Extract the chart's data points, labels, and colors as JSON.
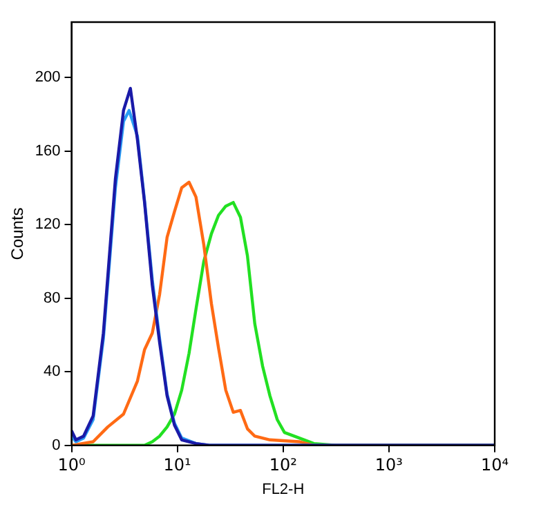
{
  "chart_data": {
    "type": "line",
    "xlabel": "FL2-H",
    "ylabel": "Counts",
    "log": "x",
    "grid": false,
    "legend": false,
    "marker": "none",
    "line_style": "solid",
    "xlim": [
      1,
      10000
    ],
    "xticks": [
      {
        "value": 1,
        "label": "10⁰"
      },
      {
        "value": 10,
        "label": "10¹"
      },
      {
        "value": 100,
        "label": "10²"
      },
      {
        "value": 1000,
        "label": "10³"
      },
      {
        "value": 10000,
        "label": "10⁴"
      }
    ],
    "ylim": [
      0,
      230
    ],
    "yticks": [
      0,
      40,
      80,
      120,
      160,
      200
    ],
    "series": [
      {
        "color": "#1a1aa8",
        "x": [
          1,
          1.1,
          1.3,
          1.6,
          2.0,
          2.6,
          3.1,
          3.6,
          4.2,
          4.9,
          5.8,
          6.8,
          8.0,
          9.4,
          11,
          15,
          20,
          100,
          10000
        ],
        "values": [
          8,
          3,
          5,
          16,
          61,
          145,
          182,
          194,
          166,
          132,
          87,
          56,
          27,
          11,
          3,
          1,
          0,
          0,
          0
        ]
      },
      {
        "color": "#2a9df4",
        "x": [
          1,
          1.1,
          1.3,
          1.6,
          2.0,
          2.6,
          3.1,
          3.5,
          4.2,
          4.9,
          5.8,
          6.8,
          8.0,
          9.4,
          11,
          15,
          20,
          100,
          10000
        ],
        "values": [
          5,
          2,
          4,
          14,
          58,
          140,
          176,
          182,
          168,
          133,
          90,
          58,
          28,
          12,
          4,
          1,
          0,
          0,
          0
        ]
      },
      {
        "color": "#ff6a14",
        "x": [
          1,
          1.6,
          2.2,
          3.1,
          4.2,
          4.9,
          5.8,
          6.8,
          8.0,
          9.4,
          11,
          12.9,
          15,
          17.8,
          21,
          24.5,
          28.7,
          33.8,
          39.5,
          46,
          54,
          75,
          142,
          195,
          10000
        ],
        "values": [
          0,
          2,
          10,
          17,
          35,
          52,
          61,
          82,
          113,
          127,
          140,
          143,
          135,
          109,
          77,
          53,
          30,
          18,
          19,
          9,
          5,
          3,
          2,
          0,
          0
        ]
      },
      {
        "color": "#22e022",
        "x": [
          1,
          4.9,
          5.8,
          6.8,
          8.0,
          9.4,
          11,
          12.9,
          15.1,
          17.8,
          21,
          24.5,
          28.7,
          33.8,
          39.5,
          46,
          54,
          64,
          75,
          88,
          103,
          142,
          195,
          316,
          10000
        ],
        "values": [
          0,
          0,
          2,
          5,
          10,
          17,
          30,
          50,
          75,
          100,
          115,
          125,
          130,
          132,
          124,
          103,
          66,
          43,
          27,
          14,
          7,
          4,
          1,
          0,
          0
        ]
      }
    ]
  }
}
